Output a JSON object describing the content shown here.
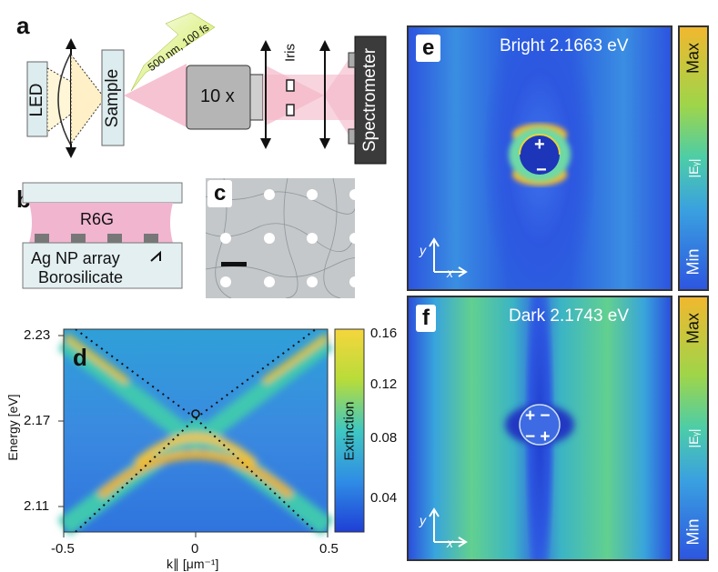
{
  "panel_a": {
    "label": "a",
    "led": "LED",
    "sample": "Sample",
    "laser": "500 nm, 100 fs",
    "objective": "10 x",
    "iris": "Iris",
    "spectrometer": "Spectrometer"
  },
  "panel_b": {
    "label": "b",
    "r6g": "R6G",
    "array": "Ag NP array",
    "substrate": "Borosilicate"
  },
  "panel_c": {
    "label": "c"
  },
  "panel_d": {
    "label": "d",
    "colorbar_label": "Extinction",
    "colorbar_ticks": [
      "0.16",
      "0.12",
      "0.08",
      "0.04"
    ]
  },
  "panel_e": {
    "label": "e",
    "title": "Bright 2.1663 eV",
    "plus": "+",
    "minus": "−",
    "colorbar_max": "Max",
    "colorbar_min": "Min",
    "colorbar_mid": "|Eᵧ|",
    "axis_y": "y",
    "axis_x": "x"
  },
  "panel_f": {
    "label": "f",
    "title": "Dark 2.1743 eV",
    "charges_top": "+ −",
    "charges_bottom": "− +",
    "colorbar_max": "Max",
    "colorbar_min": "Min",
    "colorbar_mid": "|Eᵧ|",
    "axis_y": "y",
    "axis_x": "x"
  },
  "chart_data": {
    "type": "heatmap",
    "xlabel": "k∥ [μm⁻¹]",
    "ylabel": "Energy [eV]",
    "xlim": [
      -0.5,
      0.5
    ],
    "ylim": [
      2.1,
      2.235
    ],
    "x_ticks": [
      "-0.5",
      "0",
      "0.5"
    ],
    "y_ticks": [
      "2.23",
      "2.17",
      "2.11"
    ],
    "colorbar": {
      "label": "Extinction",
      "range": [
        0.02,
        0.165
      ],
      "ticks": [
        0.16,
        0.12,
        0.08,
        0.04
      ]
    },
    "series": [
      {
        "name": "",
        "x": [
          -0.45,
          0.0,
          0.45
        ],
        "y": [
          2.232,
          2.174,
          2.232
        ]
      },
      {
        "name": "",
        "x": [
          -0.45,
          0.0,
          0.45
        ],
        "y": [
          2.108,
          2.174,
          2.108
        ]
      }
    ],
    "annotations": [
      {
        "type": "circle",
        "x": 0.0,
        "y": 2.176
      }
    ]
  }
}
